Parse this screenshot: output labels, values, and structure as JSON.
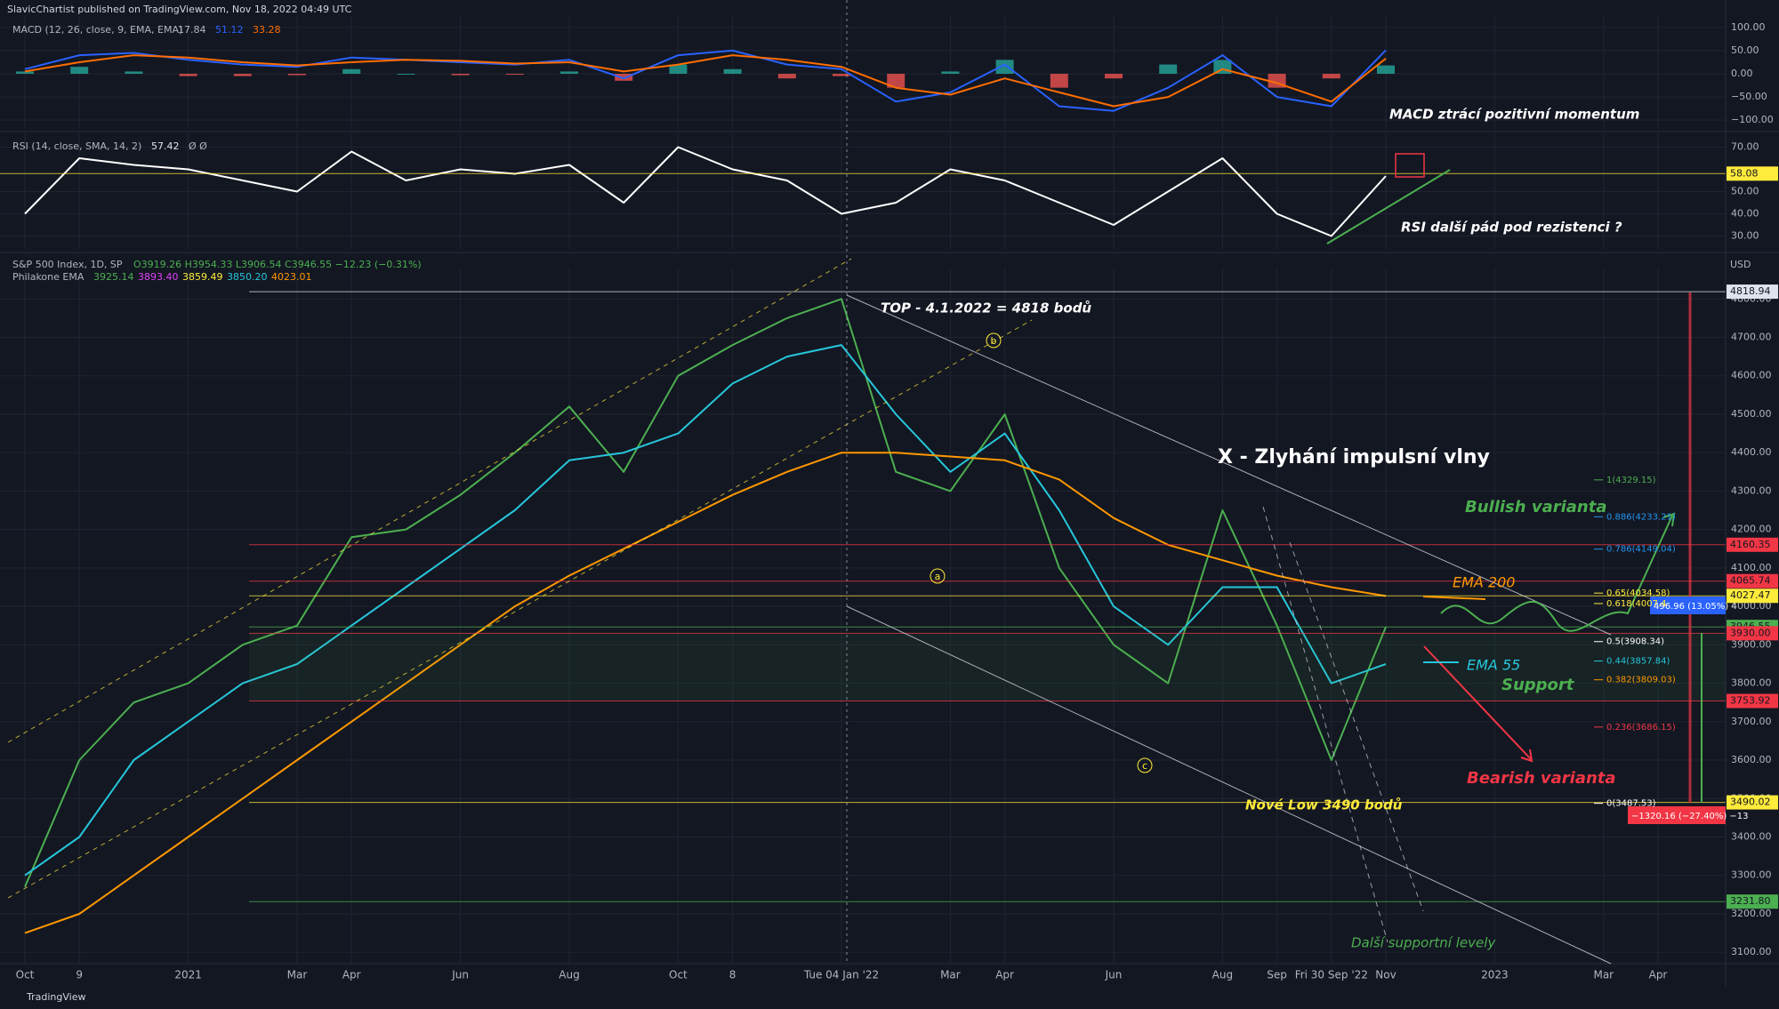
{
  "header": "SlavicChartist published on TradingView.com, Nov 18, 2022 04:49 UTC",
  "footer": "TradingView",
  "chart_data": [
    {
      "type": "line",
      "legend": "MACD (12, 26, close, 9, EMA, EMA)",
      "last_values": [
        17.84,
        51.12,
        33.28
      ],
      "last_colors": [
        "#b2b5be",
        "#2962ff",
        "#ff6d00"
      ],
      "annotation": "MACD ztrácí pozitivní momentum",
      "ylim": [
        -115,
        115
      ],
      "yticks": [
        {
          "value": 100,
          "label": "100.00"
        },
        {
          "value": 50,
          "label": "50.00"
        },
        {
          "value": 0,
          "label": "0.00"
        },
        {
          "value": -50,
          "label": "−50.00"
        },
        {
          "value": -100,
          "label": "−100.00"
        }
      ],
      "grid": true,
      "series": [
        {
          "type": "bar",
          "color": "#26a69a",
          "negative_color": "#ef5350",
          "values": [
            5,
            15,
            5,
            -5,
            -5,
            -3,
            10,
            0,
            -3,
            -2,
            5,
            -15,
            20,
            10,
            -10,
            -5,
            -30,
            5,
            30,
            -30,
            -10,
            20,
            30,
            -30,
            -10,
            18,
            null,
            null,
            null,
            null,
            null
          ]
        },
        {
          "type": "line",
          "color": "#2962ff",
          "values": [
            10,
            40,
            45,
            30,
            20,
            15,
            35,
            30,
            25,
            20,
            30,
            -10,
            40,
            50,
            20,
            10,
            -60,
            -40,
            20,
            -70,
            -80,
            -30,
            40,
            -50,
            -70,
            51,
            null,
            null,
            null,
            null,
            null
          ]
        },
        {
          "type": "line",
          "color": "#ff6d00",
          "values": [
            5,
            25,
            40,
            35,
            25,
            18,
            25,
            30,
            28,
            22,
            25,
            5,
            20,
            40,
            30,
            15,
            -30,
            -45,
            -10,
            -40,
            -70,
            -50,
            10,
            -20,
            -60,
            33,
            null,
            null,
            null,
            null,
            null
          ]
        }
      ]
    },
    {
      "type": "line",
      "legend": "RSI (14, close, SMA, 14, 2)",
      "last_values": [
        57.42
      ],
      "last_colors": [
        "#e0e3eb"
      ],
      "legend_suffix": "Ø  Ø",
      "annotation": "RSI další pád pod rezistenci ?",
      "ylim": [
        25,
        75
      ],
      "yticks": [
        {
          "value": 30,
          "label": "30.00"
        },
        {
          "value": 40,
          "label": "40.00"
        },
        {
          "value": 50,
          "label": "50.00"
        },
        {
          "value": 70,
          "label": "70.00"
        }
      ],
      "grid": true,
      "levels": [
        {
          "value": 58.08,
          "color": "#ffeb3b"
        }
      ],
      "series": [
        {
          "type": "line",
          "color": "#ffffff",
          "values": [
            40,
            65,
            62,
            60,
            55,
            50,
            68,
            55,
            60,
            58,
            62,
            45,
            70,
            60,
            55,
            40,
            45,
            60,
            55,
            45,
            35,
            50,
            65,
            40,
            30,
            57,
            null,
            null,
            null,
            null,
            null
          ]
        }
      ]
    },
    {
      "type": "line",
      "legend": "S&P 500 Index, 1D, SP",
      "ohlc": "O3919.26  H3954.33  L3906.54  C3946.55  −12.23 (−0.31%)",
      "ema_legend": "Philakone EMA",
      "ema_values": [
        "3925.14",
        "3893.40",
        "3859.49",
        "3850.20",
        "4023.01"
      ],
      "ema_colors": [
        "#4caf50",
        "#e040fb",
        "#ffeb3b",
        "#26c6da",
        "#ff9800"
      ],
      "currency": "USD",
      "categories": [
        "Oct",
        "9",
        null,
        "2021",
        null,
        "Mar",
        "Apr",
        null,
        "Jun",
        null,
        "Aug",
        null,
        "Oct",
        "8",
        null,
        "Tue 04 Jan '22",
        null,
        "Mar",
        "Apr",
        null,
        "Jun",
        null,
        "Aug",
        "Sep",
        "Fri 30 Sep '22",
        "Nov",
        null,
        "2023",
        null,
        "Mar",
        "Apr"
      ],
      "ylim": [
        3075,
        4870
      ],
      "yticks": [
        {
          "value": 3100,
          "label": "3100.00"
        },
        {
          "value": 3200,
          "label": "3200.00"
        },
        {
          "value": 3300,
          "label": "3300.00"
        },
        {
          "value": 3400,
          "label": "3400.00"
        },
        {
          "value": 3500,
          "label": "3500.00"
        },
        {
          "value": 3600,
          "label": "3600.00"
        },
        {
          "value": 3700,
          "label": "3700.00"
        },
        {
          "value": 3800,
          "label": "3800.00"
        },
        {
          "value": 3900,
          "label": "3900.00"
        },
        {
          "value": 4000,
          "label": "4000.00"
        },
        {
          "value": 4100,
          "label": "4100.00"
        },
        {
          "value": 4200,
          "label": "4200.00"
        },
        {
          "value": 4300,
          "label": "4300.00"
        },
        {
          "value": 4400,
          "label": "4400.00"
        },
        {
          "value": 4500,
          "label": "4500.00"
        },
        {
          "value": 4600,
          "label": "4600.00"
        },
        {
          "value": 4700,
          "label": "4700.00"
        },
        {
          "value": 4800,
          "label": "4800.00"
        }
      ],
      "grid": true,
      "series": [
        {
          "type": "line",
          "color": "#4caf50",
          "values": [
            3270,
            3600,
            3750,
            3800,
            3900,
            3950,
            4180,
            4200,
            4290,
            4400,
            4520,
            4350,
            4600,
            4680,
            4750,
            4800,
            4350,
            4300,
            4500,
            4100,
            3900,
            3800,
            4250,
            3950,
            3600,
            3946.55,
            null,
            null,
            null,
            null,
            null
          ]
        },
        {
          "type": "line",
          "color": "#26c6da",
          "values": [
            3300,
            3400,
            3600,
            3700,
            3800,
            3850,
            3950,
            4050,
            4150,
            4250,
            4380,
            4400,
            4450,
            4580,
            4650,
            4680,
            4500,
            4350,
            4450,
            4250,
            4000,
            3900,
            4050,
            4050,
            3800,
            3850,
            null,
            null,
            null,
            null,
            null
          ]
        },
        {
          "type": "line",
          "color": "#ff9800",
          "values": [
            3150,
            3200,
            3300,
            3400,
            3500,
            3600,
            3700,
            3800,
            3900,
            4000,
            4080,
            4150,
            4220,
            4290,
            4350,
            4400,
            4400,
            4390,
            4380,
            4330,
            4230,
            4160,
            4120,
            4080,
            4050,
            4027,
            null,
            null,
            null,
            null,
            null
          ]
        }
      ],
      "levels": [
        {
          "value": 4818.94,
          "color": "#e0e3eb"
        },
        {
          "value": 4160.35,
          "color": "#f23645"
        },
        {
          "value": 4065.74,
          "color": "#f23645"
        },
        {
          "value": 4027.47,
          "color": "#ffeb3b"
        },
        {
          "value": 3946.55,
          "color": "#4caf50"
        },
        {
          "value": 3930,
          "label": "3930.00",
          "color": "#f23645"
        },
        {
          "value": 3753.92,
          "color": "#f23645"
        },
        {
          "value": 3490.02,
          "color": "#ffeb3b"
        },
        {
          "value": 3231.8,
          "label": "3231.80",
          "color": "#4caf50"
        }
      ],
      "fib": [
        {
          "value": 4329.15,
          "label": "1(4329.15)",
          "color": "#4caf50"
        },
        {
          "value": 4233.21,
          "label": "0.886(4233.21)",
          "color": "#2196f3"
        },
        {
          "value": 4149.04,
          "label": "0.786(4149.04)",
          "color": "#2196f3"
        },
        {
          "value": 4034.58,
          "label": "0.65(4034.58)",
          "color": "#ffeb3b"
        },
        {
          "value": 4007.4,
          "label": "0.618(4007.4",
          "color": "#ffeb3b"
        },
        {
          "value": 3908.34,
          "label": "0.5(3908.34)",
          "color": "#ffffff"
        },
        {
          "value": 3857.84,
          "label": "0.44(3857.84)",
          "color": "#26c6da"
        },
        {
          "value": 3809.03,
          "label": "0.382(3809.03)",
          "color": "#ff9800"
        },
        {
          "value": 3686.15,
          "label": "0.236(3686.15)",
          "color": "#f23645"
        },
        {
          "value": 3487.53,
          "label": "0(3487.53)",
          "color": "#ffffff"
        }
      ],
      "annotations": {
        "top": "TOP - 4.1.2022 = 4818 bodů",
        "impulse": "X - Zlyhání impulsní vlny",
        "bullish": "Bullish varianta",
        "ema200": "EMA 200",
        "ema55": "EMA 55",
        "support": "Support",
        "bearish": "Bearish varianta",
        "low": "Nové Low 3490 bodů",
        "more_support": "Další supportní levely",
        "wave_a": "a",
        "wave_b": "b",
        "wave_c": "c",
        "drop": "−1320.16 (−27.40%) −13",
        "rise": "496.96 (13.05%) 4"
      }
    }
  ]
}
